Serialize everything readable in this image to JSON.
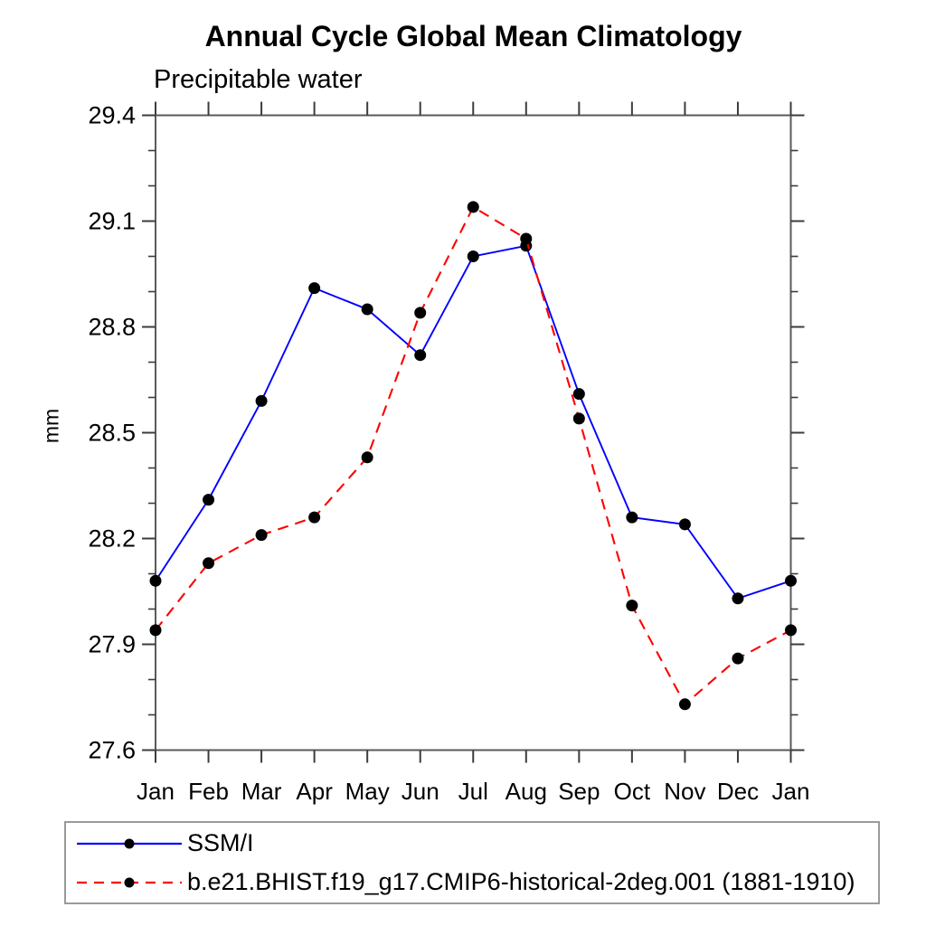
{
  "page": {
    "background": "#ffffff",
    "legend_border_color": "#9a9a9a"
  },
  "chart_data": {
    "type": "line",
    "title": "Annual Cycle Global Mean Climatology",
    "subtitle": "Precipitable water",
    "ylabel": "mm",
    "xlabel": "",
    "x_tick_labels": [
      "Jan",
      "Feb",
      "Mar",
      "Apr",
      "May",
      "Jun",
      "Jul",
      "Aug",
      "Sep",
      "Oct",
      "Nov",
      "Dec",
      "Jan"
    ],
    "y_tick_labels": [
      "27.6",
      "27.9",
      "28.2",
      "28.5",
      "28.8",
      "29.1",
      "29.4"
    ],
    "ylim": [
      27.6,
      29.4
    ],
    "y_major_step": 0.3,
    "y_minor_step": 0.1,
    "grid": false,
    "legend_position": "bottom",
    "marker": "filled-circle",
    "marker_color": "#000000",
    "axis_color": "#5a5a5a",
    "tick_color": "#3c3c3c",
    "series": [
      {
        "name": "SSM/I",
        "color": "#0000ff",
        "style": "solid",
        "values": [
          28.08,
          28.31,
          28.59,
          28.91,
          28.85,
          28.72,
          29.0,
          29.03,
          28.61,
          28.26,
          28.24,
          28.03,
          28.08
        ]
      },
      {
        "name": "b.e21.BHIST.f19_g17.CMIP6-historical-2deg.001 (1881-1910)",
        "color": "#ff0000",
        "style": "dashed",
        "values": [
          27.94,
          28.13,
          28.21,
          28.26,
          28.43,
          28.84,
          29.14,
          29.05,
          28.54,
          28.01,
          27.73,
          27.86,
          27.94
        ]
      }
    ]
  }
}
